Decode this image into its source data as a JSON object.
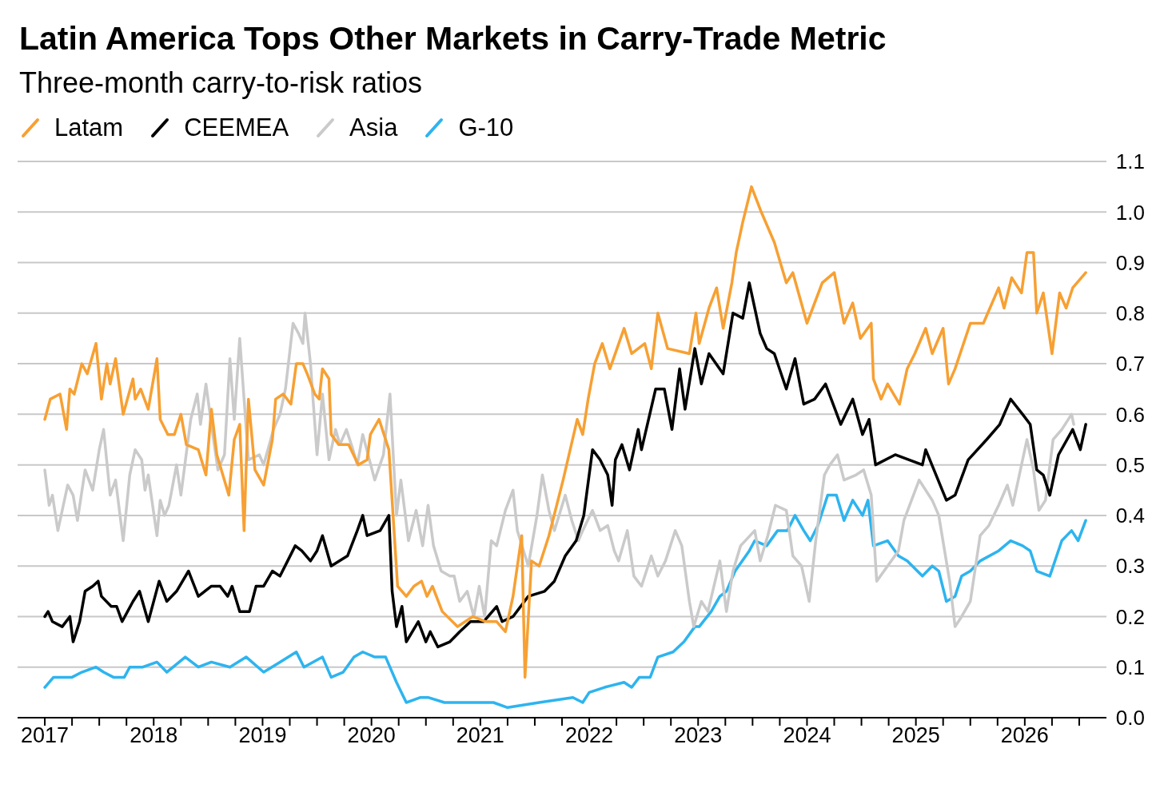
{
  "chart_data": {
    "type": "line",
    "title": "Latin America Tops Other Markets in Carry-Trade Metric",
    "subtitle": "Three-month carry-to-risk ratios",
    "legend": "top left",
    "grid": "y",
    "line_style": "solid",
    "xlim": [
      2016.75,
      2026.75
    ],
    "xticks": [
      2017,
      {
        "value": 2017.25,
        "label": null
      },
      {
        "value": 2017.5,
        "label": null
      },
      {
        "value": 2017.75,
        "label": null
      },
      2018,
      {
        "value": 2018.25,
        "label": null
      },
      {
        "value": 2018.5,
        "label": null
      },
      {
        "value": 2018.75,
        "label": null
      },
      2019,
      {
        "value": 2019.25,
        "label": null
      },
      {
        "value": 2019.5,
        "label": null
      },
      {
        "value": 2019.75,
        "label": null
      },
      2020,
      {
        "value": 2020.25,
        "label": null
      },
      {
        "value": 2020.5,
        "label": null
      },
      {
        "value": 2020.75,
        "label": null
      },
      2021,
      {
        "value": 2021.25,
        "label": null
      },
      {
        "value": 2021.5,
        "label": null
      },
      {
        "value": 2021.75,
        "label": null
      },
      2022,
      {
        "value": 2022.25,
        "label": null
      },
      {
        "value": 2022.5,
        "label": null
      },
      {
        "value": 2022.75,
        "label": null
      },
      2023,
      {
        "value": 2023.25,
        "label": null
      },
      {
        "value": 2023.5,
        "label": null
      },
      {
        "value": 2023.75,
        "label": null
      },
      2024,
      {
        "value": 2024.25,
        "label": null
      },
      {
        "value": 2024.5,
        "label": null
      },
      {
        "value": 2024.75,
        "label": null
      },
      2025,
      {
        "value": 2025.25,
        "label": null
      },
      {
        "value": 2025.5,
        "label": null
      },
      {
        "value": 2025.75,
        "label": null
      },
      2026,
      {
        "value": 2026.25,
        "label": null
      },
      {
        "value": 2026.5,
        "label": null
      }
    ],
    "ylim": [
      0,
      1.1
    ],
    "yticks": [
      {
        "value": 0,
        "label": "0.0"
      },
      0.1,
      0.2,
      0.3,
      0.4,
      0.5,
      0.6,
      0.7,
      0.8,
      0.9,
      {
        "value": 1,
        "label": "1.0"
      },
      1.1
    ],
    "series": [
      {
        "name": "Latam",
        "color": "#f7a033",
        "x": [
          2017.0,
          2017.05,
          2017.14,
          2017.2,
          2017.23,
          2017.27,
          2017.34,
          2017.39,
          2017.47,
          2017.52,
          2017.57,
          2017.6,
          2017.65,
          2017.72,
          2017.81,
          2017.83,
          2017.88,
          2017.95,
          2018.03,
          2018.06,
          2018.13,
          2018.19,
          2018.25,
          2018.3,
          2018.41,
          2018.48,
          2018.53,
          2018.58,
          2018.69,
          2018.74,
          2018.79,
          2018.83,
          2018.87,
          2018.93,
          2019.01,
          2019.09,
          2019.12,
          2019.19,
          2019.26,
          2019.31,
          2019.37,
          2019.41,
          2019.48,
          2019.52,
          2019.55,
          2019.61,
          2019.63,
          2019.7,
          2019.79,
          2019.88,
          2019.96,
          2019.99,
          2020.07,
          2020.16,
          2020.24,
          2020.32,
          2020.39,
          2020.46,
          2020.51,
          2020.56,
          2020.65,
          2020.79,
          2020.93,
          2021.05,
          2021.15,
          2021.23,
          2021.3,
          2021.38,
          2021.41,
          2021.47,
          2021.54,
          2021.63,
          2021.76,
          2021.89,
          2021.94,
          2021.99,
          2022.05,
          2022.12,
          2022.19,
          2022.32,
          2022.39,
          2022.51,
          2022.57,
          2022.63,
          2022.72,
          2022.92,
          2022.98,
          2023.01,
          2023.1,
          2023.17,
          2023.23,
          2023.31,
          2023.35,
          2023.41,
          2023.49,
          2023.58,
          2023.7,
          2023.81,
          2023.87,
          2024.0,
          2024.14,
          2024.25,
          2024.34,
          2024.42,
          2024.49,
          2024.59,
          2024.61,
          2024.68,
          2024.74,
          2024.85,
          2024.92,
          2024.99,
          2025.09,
          2025.15,
          2025.25,
          2025.3,
          2025.36,
          2025.5,
          2025.62,
          2025.76,
          2025.81,
          2025.88,
          2025.97,
          2026.02,
          2026.08,
          2026.11,
          2026.17,
          2026.25,
          2026.32,
          2026.38,
          2026.44,
          2026.56
        ],
        "values": [
          0.59,
          0.63,
          0.64,
          0.57,
          0.65,
          0.64,
          0.7,
          0.68,
          0.74,
          0.63,
          0.7,
          0.66,
          0.71,
          0.6,
          0.67,
          0.63,
          0.65,
          0.61,
          0.71,
          0.59,
          0.56,
          0.56,
          0.6,
          0.54,
          0.53,
          0.48,
          0.61,
          0.52,
          0.44,
          0.55,
          0.58,
          0.37,
          0.63,
          0.49,
          0.46,
          0.55,
          0.63,
          0.64,
          0.62,
          0.7,
          0.7,
          0.68,
          0.64,
          0.63,
          0.69,
          0.67,
          0.56,
          0.54,
          0.54,
          0.5,
          0.51,
          0.56,
          0.59,
          0.53,
          0.26,
          0.24,
          0.26,
          0.27,
          0.24,
          0.26,
          0.21,
          0.18,
          0.2,
          0.19,
          0.19,
          0.17,
          0.24,
          0.36,
          0.08,
          0.31,
          0.3,
          0.36,
          0.47,
          0.59,
          0.56,
          0.63,
          0.7,
          0.74,
          0.69,
          0.77,
          0.72,
          0.74,
          0.69,
          0.8,
          0.73,
          0.72,
          0.8,
          0.74,
          0.81,
          0.85,
          0.77,
          0.86,
          0.92,
          0.98,
          1.05,
          1.0,
          0.94,
          0.86,
          0.88,
          0.78,
          0.86,
          0.88,
          0.78,
          0.82,
          0.75,
          0.78,
          0.67,
          0.63,
          0.66,
          0.62,
          0.69,
          0.72,
          0.77,
          0.72,
          0.77,
          0.66,
          0.69,
          0.78,
          0.78,
          0.85,
          0.81,
          0.87,
          0.84,
          0.92,
          0.92,
          0.8,
          0.84,
          0.72,
          0.84,
          0.81,
          0.85,
          0.88
        ]
      },
      {
        "name": "CEEMEA",
        "color": "#000000",
        "x": [
          2017.0,
          2017.03,
          2017.07,
          2017.16,
          2017.23,
          2017.26,
          2017.32,
          2017.37,
          2017.44,
          2017.49,
          2017.52,
          2017.61,
          2017.66,
          2017.71,
          2017.81,
          2017.87,
          2017.95,
          2018.05,
          2018.12,
          2018.21,
          2018.32,
          2018.41,
          2018.53,
          2018.61,
          2018.68,
          2018.72,
          2018.79,
          2018.88,
          2018.94,
          2019.01,
          2019.09,
          2019.16,
          2019.23,
          2019.3,
          2019.36,
          2019.44,
          2019.5,
          2019.55,
          2019.63,
          2019.78,
          2019.87,
          2019.92,
          2019.96,
          2020.08,
          2020.16,
          2020.19,
          2020.23,
          2020.28,
          2020.32,
          2020.43,
          2020.5,
          2020.54,
          2020.61,
          2020.72,
          2020.81,
          2020.91,
          2021.03,
          2021.15,
          2021.2,
          2021.3,
          2021.44,
          2021.59,
          2021.68,
          2021.78,
          2021.88,
          2021.95,
          2022.03,
          2022.1,
          2022.17,
          2022.21,
          2022.24,
          2022.3,
          2022.37,
          2022.45,
          2022.48,
          2022.61,
          2022.69,
          2022.76,
          2022.83,
          2022.88,
          2022.97,
          2023.03,
          2023.1,
          2023.23,
          2023.32,
          2023.41,
          2023.47,
          2023.57,
          2023.63,
          2023.7,
          2023.81,
          2023.89,
          2023.97,
          2024.07,
          2024.17,
          2024.31,
          2024.42,
          2024.51,
          2024.57,
          2024.63,
          2024.81,
          2025.06,
          2025.09,
          2025.28,
          2025.36,
          2025.48,
          2025.65,
          2025.77,
          2025.87,
          2025.98,
          2026.05,
          2026.11,
          2026.17,
          2026.23,
          2026.31,
          2026.44,
          2026.51,
          2026.56
        ],
        "values": [
          0.2,
          0.21,
          0.19,
          0.18,
          0.2,
          0.15,
          0.19,
          0.25,
          0.26,
          0.27,
          0.24,
          0.22,
          0.22,
          0.19,
          0.23,
          0.25,
          0.19,
          0.27,
          0.23,
          0.25,
          0.29,
          0.24,
          0.26,
          0.26,
          0.24,
          0.26,
          0.21,
          0.21,
          0.26,
          0.26,
          0.29,
          0.28,
          0.31,
          0.34,
          0.33,
          0.31,
          0.33,
          0.36,
          0.3,
          0.32,
          0.37,
          0.4,
          0.36,
          0.37,
          0.4,
          0.25,
          0.18,
          0.22,
          0.15,
          0.19,
          0.15,
          0.17,
          0.14,
          0.15,
          0.17,
          0.19,
          0.19,
          0.22,
          0.19,
          0.2,
          0.24,
          0.25,
          0.27,
          0.32,
          0.35,
          0.4,
          0.53,
          0.51,
          0.48,
          0.42,
          0.51,
          0.54,
          0.49,
          0.57,
          0.53,
          0.65,
          0.65,
          0.57,
          0.69,
          0.61,
          0.73,
          0.66,
          0.72,
          0.68,
          0.8,
          0.79,
          0.86,
          0.76,
          0.73,
          0.72,
          0.65,
          0.71,
          0.62,
          0.63,
          0.66,
          0.58,
          0.63,
          0.56,
          0.59,
          0.5,
          0.52,
          0.5,
          0.53,
          0.43,
          0.44,
          0.51,
          0.55,
          0.58,
          0.63,
          0.6,
          0.58,
          0.49,
          0.48,
          0.44,
          0.52,
          0.57,
          0.53,
          0.58
        ]
      },
      {
        "name": "Asia",
        "color": "#cacaca",
        "x": [
          2017.0,
          2017.04,
          2017.07,
          2017.12,
          2017.17,
          2017.21,
          2017.26,
          2017.3,
          2017.37,
          2017.44,
          2017.5,
          2017.54,
          2017.6,
          2017.65,
          2017.72,
          2017.78,
          2017.83,
          2017.89,
          2017.92,
          2017.95,
          2018.03,
          2018.06,
          2018.1,
          2018.14,
          2018.21,
          2018.25,
          2018.34,
          2018.4,
          2018.43,
          2018.48,
          2018.53,
          2018.59,
          2018.65,
          2018.7,
          2018.74,
          2018.79,
          2018.83,
          2018.87,
          2018.97,
          2019.01,
          2019.1,
          2019.16,
          2019.21,
          2019.28,
          2019.33,
          2019.37,
          2019.39,
          2019.44,
          2019.5,
          2019.55,
          2019.61,
          2019.67,
          2019.71,
          2019.77,
          2019.83,
          2019.87,
          2019.92,
          2020.03,
          2020.11,
          2020.17,
          2020.23,
          2020.27,
          2020.34,
          2020.41,
          2020.47,
          2020.52,
          2020.57,
          2020.64,
          2020.72,
          2020.76,
          2020.81,
          2020.88,
          2020.94,
          2020.99,
          2021.04,
          2021.1,
          2021.15,
          2021.23,
          2021.3,
          2021.34,
          2021.44,
          2021.52,
          2021.57,
          2021.63,
          2021.68,
          2021.78,
          2021.84,
          2021.9,
          2021.94,
          2022.03,
          2022.1,
          2022.17,
          2022.23,
          2022.27,
          2022.35,
          2022.41,
          2022.48,
          2022.57,
          2022.63,
          2022.7,
          2022.79,
          2022.85,
          2022.92,
          2022.96,
          2023.03,
          2023.09,
          2023.2,
          2023.26,
          2023.32,
          2023.39,
          2023.52,
          2023.57,
          2023.64,
          2023.71,
          2023.81,
          2023.87,
          2023.95,
          2024.02,
          2024.08,
          2024.16,
          2024.21,
          2024.28,
          2024.34,
          2024.45,
          2024.52,
          2024.59,
          2024.64,
          2024.74,
          2024.84,
          2024.89,
          2025.03,
          2025.15,
          2025.21,
          2025.31,
          2025.36,
          2025.42,
          2025.5,
          2025.59,
          2025.67,
          2025.76,
          2025.84,
          2025.89,
          2025.95,
          2026.02,
          2026.08,
          2026.13,
          2026.19,
          2026.26,
          2026.34,
          2026.43,
          2026.45
        ],
        "values": [
          0.49,
          0.42,
          0.44,
          0.37,
          0.42,
          0.46,
          0.44,
          0.39,
          0.49,
          0.45,
          0.53,
          0.57,
          0.44,
          0.47,
          0.35,
          0.48,
          0.53,
          0.51,
          0.45,
          0.48,
          0.36,
          0.43,
          0.4,
          0.42,
          0.5,
          0.44,
          0.59,
          0.64,
          0.58,
          0.66,
          0.58,
          0.49,
          0.52,
          0.71,
          0.59,
          0.75,
          0.63,
          0.51,
          0.52,
          0.5,
          0.57,
          0.6,
          0.65,
          0.78,
          0.76,
          0.74,
          0.8,
          0.7,
          0.52,
          0.64,
          0.51,
          0.57,
          0.54,
          0.57,
          0.53,
          0.5,
          0.56,
          0.47,
          0.52,
          0.64,
          0.4,
          0.47,
          0.35,
          0.41,
          0.34,
          0.42,
          0.34,
          0.29,
          0.28,
          0.28,
          0.23,
          0.25,
          0.2,
          0.26,
          0.2,
          0.35,
          0.34,
          0.41,
          0.45,
          0.37,
          0.3,
          0.4,
          0.48,
          0.41,
          0.37,
          0.44,
          0.39,
          0.35,
          0.37,
          0.41,
          0.37,
          0.38,
          0.33,
          0.31,
          0.37,
          0.28,
          0.26,
          0.32,
          0.28,
          0.31,
          0.37,
          0.34,
          0.23,
          0.18,
          0.23,
          0.21,
          0.31,
          0.21,
          0.29,
          0.34,
          0.37,
          0.31,
          0.36,
          0.42,
          0.41,
          0.32,
          0.3,
          0.23,
          0.35,
          0.48,
          0.5,
          0.52,
          0.47,
          0.48,
          0.49,
          0.44,
          0.27,
          0.3,
          0.33,
          0.39,
          0.47,
          0.43,
          0.4,
          0.27,
          0.18,
          0.2,
          0.23,
          0.36,
          0.38,
          0.42,
          0.46,
          0.42,
          0.48,
          0.55,
          0.49,
          0.41,
          0.43,
          0.55,
          0.57,
          0.6,
          0.58
        ]
      },
      {
        "name": "G-10",
        "color": "#2db4ef",
        "x": [
          2017.0,
          2017.08,
          2017.16,
          2017.25,
          2017.34,
          2017.47,
          2017.54,
          2017.63,
          2017.73,
          2017.78,
          2017.9,
          2018.03,
          2018.12,
          2018.29,
          2018.41,
          2018.53,
          2018.7,
          2018.85,
          2019.01,
          2019.16,
          2019.31,
          2019.38,
          2019.55,
          2019.63,
          2019.74,
          2019.84,
          2019.92,
          2020.03,
          2020.13,
          2020.23,
          2020.32,
          2020.45,
          2020.52,
          2020.67,
          2020.88,
          2021.12,
          2021.25,
          2021.54,
          2021.85,
          2021.94,
          2022.0,
          2022.14,
          2022.32,
          2022.39,
          2022.46,
          2022.56,
          2022.63,
          2022.77,
          2022.87,
          2022.97,
          2023.01,
          2023.12,
          2023.2,
          2023.26,
          2023.34,
          2023.47,
          2023.52,
          2023.63,
          2023.73,
          2023.82,
          2023.89,
          2023.97,
          2024.03,
          2024.1,
          2024.19,
          2024.27,
          2024.34,
          2024.42,
          2024.51,
          2024.56,
          2024.61,
          2024.74,
          2024.84,
          2024.92,
          2025.06,
          2025.15,
          2025.21,
          2025.28,
          2025.36,
          2025.42,
          2025.5,
          2025.59,
          2025.76,
          2025.87,
          2025.98,
          2026.05,
          2026.11,
          2026.23,
          2026.34,
          2026.43,
          2026.49,
          2026.56
        ],
        "values": [
          0.06,
          0.08,
          0.08,
          0.08,
          0.09,
          0.1,
          0.09,
          0.08,
          0.08,
          0.1,
          0.1,
          0.11,
          0.09,
          0.12,
          0.1,
          0.11,
          0.1,
          0.12,
          0.09,
          0.11,
          0.13,
          0.1,
          0.12,
          0.08,
          0.09,
          0.12,
          0.13,
          0.12,
          0.12,
          0.07,
          0.03,
          0.04,
          0.04,
          0.03,
          0.03,
          0.03,
          0.02,
          0.03,
          0.04,
          0.03,
          0.05,
          0.06,
          0.07,
          0.06,
          0.08,
          0.08,
          0.12,
          0.13,
          0.15,
          0.18,
          0.18,
          0.21,
          0.24,
          0.25,
          0.29,
          0.33,
          0.35,
          0.34,
          0.37,
          0.37,
          0.4,
          0.37,
          0.35,
          0.38,
          0.44,
          0.44,
          0.39,
          0.43,
          0.4,
          0.43,
          0.34,
          0.35,
          0.32,
          0.31,
          0.28,
          0.3,
          0.29,
          0.23,
          0.24,
          0.28,
          0.29,
          0.31,
          0.33,
          0.35,
          0.34,
          0.33,
          0.29,
          0.28,
          0.35,
          0.37,
          0.35,
          0.39
        ]
      }
    ]
  }
}
